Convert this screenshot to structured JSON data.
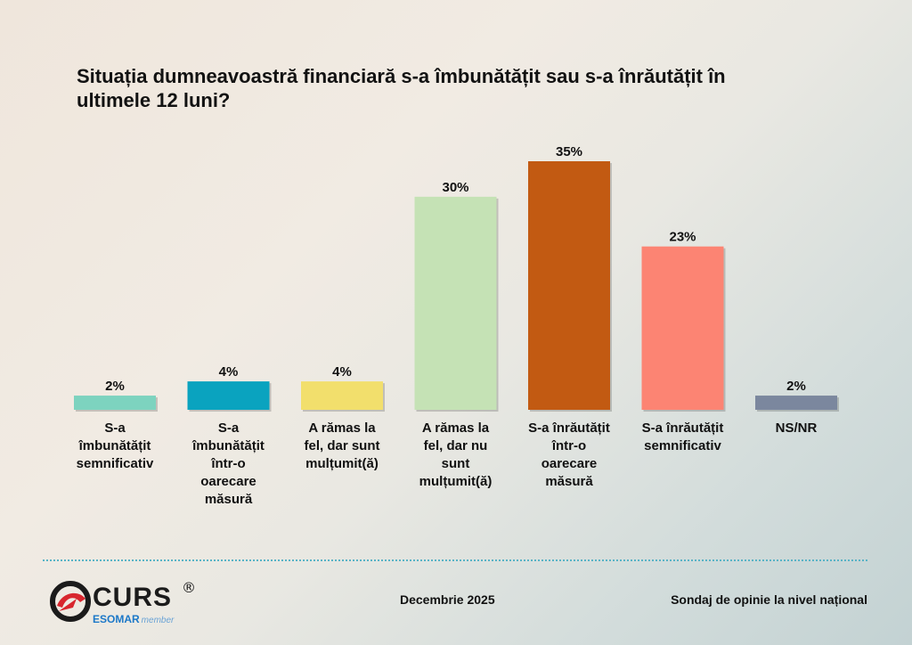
{
  "chart_data": {
    "type": "bar",
    "title": "Situația dumneavoastră financiară s-a îmbunătățit sau s-a înrăutățit în ultimele 12 luni?",
    "categories": [
      "S-a îmbunătățit semnificativ",
      "S-a îmbunătățit într-o oarecare măsură",
      "A rămas la fel, dar sunt mulțumit(ă)",
      "A rămas la fel, dar nu sunt mulțumit(ă)",
      "S-a înrăutățit într-o oarecare măsură",
      "S-a înrăutățit semnificativ",
      "NS/NR"
    ],
    "label_lines": [
      [
        "S-a",
        "îmbunătățit",
        "semnificativ"
      ],
      [
        "S-a",
        "îmbunătățit",
        "într-o",
        "oarecare",
        "măsură"
      ],
      [
        "A rămas la",
        "fel, dar sunt",
        "mulțumit(ă)"
      ],
      [
        "A rămas la",
        "fel, dar nu",
        "sunt",
        "mulțumit(ă)"
      ],
      [
        "S-a înrăutățit",
        "într-o",
        "oarecare",
        "măsură"
      ],
      [
        "S-a înrăutățit",
        "semnificativ"
      ],
      [
        "NS/NR"
      ]
    ],
    "values": [
      2,
      4,
      4,
      30,
      35,
      23,
      2
    ],
    "value_labels": [
      "2%",
      "4%",
      "4%",
      "30%",
      "35%",
      "23%",
      "2%"
    ],
    "colors": [
      "#7dd3bf",
      "#0aa3bf",
      "#f2df6c",
      "#c5e2b5",
      "#c25a12",
      "#fc8473",
      "#7b879e"
    ],
    "ylim": [
      0,
      35
    ],
    "grid": false,
    "legend": "none"
  },
  "footer": {
    "logo_text": "CURS",
    "logo_registered": "®",
    "logo_sub": "ESOMAR",
    "logo_member": "member",
    "date": "Decembrie 2025",
    "source": "Sondaj de opinie la nivel național"
  }
}
